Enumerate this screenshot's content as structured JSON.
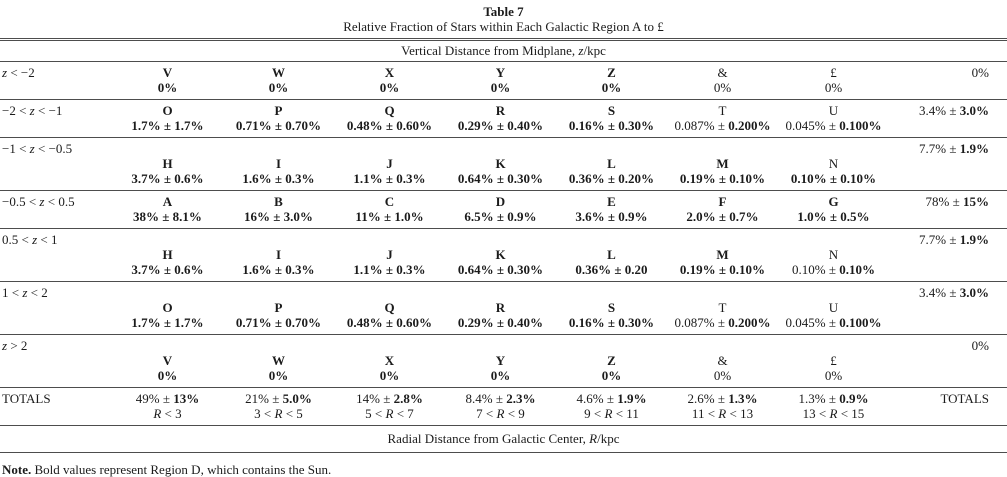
{
  "colors": {
    "text": "#1b1b1b",
    "rule": "#4d4d4d",
    "background": "#ffffff"
  },
  "title": "Table 7",
  "subtitle": "Relative Fraction of Stars within Each Galactic Region A to £",
  "top_axis": {
    "pre": "Vertical Distance from Midplane, ",
    "var": "z",
    "post": "/kpc"
  },
  "bottom_axis": {
    "pre": "Radial Distance from Galactic Center, ",
    "var": "R",
    "post": "/kpc"
  },
  "note": {
    "label": "Note.",
    "text": " Bold values represent Region D, which contains the Sun."
  },
  "rows": [
    {
      "range": {
        "pre": "",
        "var": "z",
        "post": " < −2"
      },
      "layout": "inline",
      "total": {
        "normal": "0%",
        "bold": ""
      },
      "cells": [
        {
          "letter": "V",
          "letter_bold": true,
          "normal": "",
          "bold": "0%"
        },
        {
          "letter": "W",
          "letter_bold": true,
          "normal": "",
          "bold": "0%"
        },
        {
          "letter": "X",
          "letter_bold": true,
          "normal": "",
          "bold": "0%"
        },
        {
          "letter": "Y",
          "letter_bold": true,
          "normal": "",
          "bold": "0%"
        },
        {
          "letter": "Z",
          "letter_bold": true,
          "normal": "",
          "bold": "0%"
        },
        {
          "letter": "&",
          "letter_bold": false,
          "normal": "0%",
          "bold": ""
        },
        {
          "letter": "£",
          "letter_bold": false,
          "normal": "0%",
          "bold": ""
        }
      ]
    },
    {
      "range": {
        "pre": "−2 < ",
        "var": "z",
        "post": " < −1"
      },
      "layout": "inline",
      "total": {
        "normal": "3.4% ± ",
        "bold": "3.0%"
      },
      "cells": [
        {
          "letter": "O",
          "letter_bold": true,
          "normal": "",
          "bold": "1.7% ± 1.7%"
        },
        {
          "letter": "P",
          "letter_bold": true,
          "normal": "",
          "bold": "0.71% ± 0.70%"
        },
        {
          "letter": "Q",
          "letter_bold": true,
          "normal": "",
          "bold": "0.48% ± 0.60%"
        },
        {
          "letter": "R",
          "letter_bold": true,
          "normal": "",
          "bold": "0.29% ± 0.40%"
        },
        {
          "letter": "S",
          "letter_bold": true,
          "normal": "",
          "bold": "0.16% ± 0.30%"
        },
        {
          "letter": "T",
          "letter_bold": false,
          "normal": "0.087% ± ",
          "bold": "0.200%"
        },
        {
          "letter": "U",
          "letter_bold": false,
          "normal": "0.045% ± ",
          "bold": "0.100%"
        }
      ]
    },
    {
      "range": {
        "pre": "−1 < ",
        "var": "z",
        "post": " < −0.5"
      },
      "layout": "stacked",
      "total": {
        "normal": "7.7% ± ",
        "bold": "1.9%"
      },
      "cells": [
        {
          "letter": "H",
          "letter_bold": true,
          "normal": "",
          "bold": "3.7% ± 0.6%"
        },
        {
          "letter": "I",
          "letter_bold": true,
          "normal": "",
          "bold": "1.6% ± 0.3%"
        },
        {
          "letter": "J",
          "letter_bold": true,
          "normal": "",
          "bold": "1.1% ± 0.3%"
        },
        {
          "letter": "K",
          "letter_bold": true,
          "normal": "",
          "bold": "0.64% ± 0.30%"
        },
        {
          "letter": "L",
          "letter_bold": true,
          "normal": "",
          "bold": "0.36% ± 0.20%"
        },
        {
          "letter": "M",
          "letter_bold": true,
          "normal": "",
          "bold": "0.19% ± 0.10%"
        },
        {
          "letter": "N",
          "letter_bold": false,
          "normal": "",
          "bold": "0.10% ± 0.10%"
        }
      ]
    },
    {
      "range": {
        "pre": "−0.5 < ",
        "var": "z",
        "post": " < 0.5"
      },
      "layout": "inline",
      "total": {
        "normal": "78% ± ",
        "bold": "15%"
      },
      "cells": [
        {
          "letter": "A",
          "letter_bold": true,
          "normal": "",
          "bold": "38% ± 8.1%"
        },
        {
          "letter": "B",
          "letter_bold": true,
          "normal": "",
          "bold": "16% ± 3.0%"
        },
        {
          "letter": "C",
          "letter_bold": true,
          "normal": "",
          "bold": "11% ± 1.0%"
        },
        {
          "letter": "D",
          "letter_bold": true,
          "normal": "",
          "bold": "6.5% ± 0.9%"
        },
        {
          "letter": "E",
          "letter_bold": true,
          "normal": "",
          "bold": "3.6% ± 0.9%"
        },
        {
          "letter": "F",
          "letter_bold": true,
          "normal": "",
          "bold": "2.0% ± 0.7%"
        },
        {
          "letter": "G",
          "letter_bold": true,
          "normal": "",
          "bold": "1.0% ± 0.5%"
        }
      ]
    },
    {
      "range": {
        "pre": "0.5 < ",
        "var": "z",
        "post": " < 1"
      },
      "layout": "stacked",
      "total": {
        "normal": "7.7% ± ",
        "bold": "1.9%"
      },
      "cells": [
        {
          "letter": "H",
          "letter_bold": true,
          "normal": "",
          "bold": "3.7% ± 0.6%"
        },
        {
          "letter": "I",
          "letter_bold": true,
          "normal": "",
          "bold": "1.6% ± 0.3%"
        },
        {
          "letter": "J",
          "letter_bold": true,
          "normal": "",
          "bold": "1.1% ± 0.3%"
        },
        {
          "letter": "K",
          "letter_bold": true,
          "normal": "",
          "bold": "0.64% ± 0.30%"
        },
        {
          "letter": "L",
          "letter_bold": true,
          "normal": "",
          "bold": "0.36% ± 0.20"
        },
        {
          "letter": "M",
          "letter_bold": true,
          "normal": "",
          "bold": "0.19% ± 0.10%"
        },
        {
          "letter": "N",
          "letter_bold": false,
          "normal": "0.10% ± ",
          "bold": "0.10%"
        }
      ]
    },
    {
      "range": {
        "pre": "1 < ",
        "var": "z",
        "post": " < 2"
      },
      "layout": "stacked",
      "total": {
        "normal": "3.4% ± ",
        "bold": "3.0%"
      },
      "cells": [
        {
          "letter": "O",
          "letter_bold": true,
          "normal": "",
          "bold": "1.7% ± 1.7%"
        },
        {
          "letter": "P",
          "letter_bold": true,
          "normal": "",
          "bold": "0.71% ± 0.70%"
        },
        {
          "letter": "Q",
          "letter_bold": true,
          "normal": "",
          "bold": "0.48% ± 0.60%"
        },
        {
          "letter": "R",
          "letter_bold": true,
          "normal": "",
          "bold": "0.29% ± 0.40%"
        },
        {
          "letter": "S",
          "letter_bold": true,
          "normal": "",
          "bold": "0.16% ± 0.30%"
        },
        {
          "letter": "T",
          "letter_bold": false,
          "normal": "0.087% ± ",
          "bold": "0.200%"
        },
        {
          "letter": "U",
          "letter_bold": false,
          "normal": "0.045% ± ",
          "bold": "0.100%"
        }
      ]
    },
    {
      "range": {
        "pre": "",
        "var": "z",
        "post": " > 2"
      },
      "layout": "stacked",
      "total": {
        "normal": "0%",
        "bold": ""
      },
      "cells": [
        {
          "letter": "V",
          "letter_bold": true,
          "normal": "",
          "bold": "0%"
        },
        {
          "letter": "W",
          "letter_bold": true,
          "normal": "",
          "bold": "0%"
        },
        {
          "letter": "X",
          "letter_bold": true,
          "normal": "",
          "bold": "0%"
        },
        {
          "letter": "Y",
          "letter_bold": true,
          "normal": "",
          "bold": "0%"
        },
        {
          "letter": "Z",
          "letter_bold": true,
          "normal": "",
          "bold": "0%"
        },
        {
          "letter": "&",
          "letter_bold": false,
          "normal": "0%",
          "bold": ""
        },
        {
          "letter": "£",
          "letter_bold": false,
          "normal": "0%",
          "bold": ""
        }
      ]
    }
  ],
  "totals_row": {
    "label": "TOTALS",
    "right_label": "TOTALS",
    "cells": [
      {
        "normal": "49% ± ",
        "bold": "13%",
        "range": {
          "pre": "",
          "var": "R",
          "post": " < 3"
        }
      },
      {
        "normal": "21% ± ",
        "bold": "5.0%",
        "range": {
          "pre": "3 < ",
          "var": "R",
          "post": " < 5"
        }
      },
      {
        "normal": "14% ± ",
        "bold": "2.8%",
        "range": {
          "pre": "5 < ",
          "var": "R",
          "post": " < 7"
        }
      },
      {
        "normal": "8.4% ± ",
        "bold": "2.3%",
        "range": {
          "pre": "7 < ",
          "var": "R",
          "post": " < 9"
        }
      },
      {
        "normal": "4.6% ± ",
        "bold": "1.9%",
        "range": {
          "pre": "9 < ",
          "var": "R",
          "post": " < 11"
        }
      },
      {
        "normal": "2.6% ± ",
        "bold": "1.3%",
        "range": {
          "pre": "11 < ",
          "var": "R",
          "post": " < 13"
        }
      },
      {
        "normal": "1.3% ± ",
        "bold": "0.9%",
        "range": {
          "pre": "13 < ",
          "var": "R",
          "post": " < 15"
        }
      }
    ]
  }
}
